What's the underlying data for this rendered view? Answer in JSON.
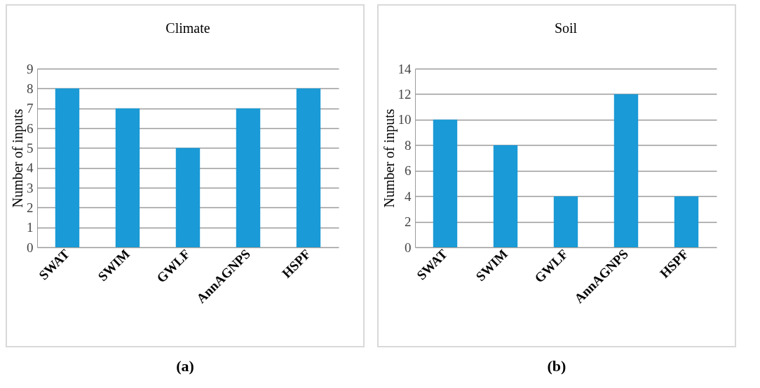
{
  "chart_data": [
    {
      "type": "bar",
      "title": "Climate",
      "ylabel": "Number of inputs",
      "categories": [
        "SWAT",
        "SWIM",
        "GWLF",
        "AnnAGNPS",
        "HSPF"
      ],
      "values": [
        8,
        7,
        5,
        7,
        8
      ],
      "color": "#1a9ad6",
      "ylim": [
        0,
        9
      ],
      "yticks": [
        0,
        1,
        2,
        3,
        4,
        5,
        6,
        7,
        8,
        9
      ],
      "grid": "y",
      "annotations": [
        "(a)"
      ]
    },
    {
      "type": "bar",
      "title": "Soil",
      "ylabel": "Number of inputs",
      "categories": [
        "SWAT",
        "SWIM",
        "GWLF",
        "AnnAGNPS",
        "HSPF"
      ],
      "values": [
        10,
        8,
        4,
        12,
        4
      ],
      "color": "#1a9ad6",
      "ylim": [
        0,
        14
      ],
      "yticks": [
        0,
        2,
        4,
        6,
        8,
        10,
        12,
        14
      ],
      "grid": "y",
      "annotations": [
        "(b)"
      ]
    }
  ]
}
